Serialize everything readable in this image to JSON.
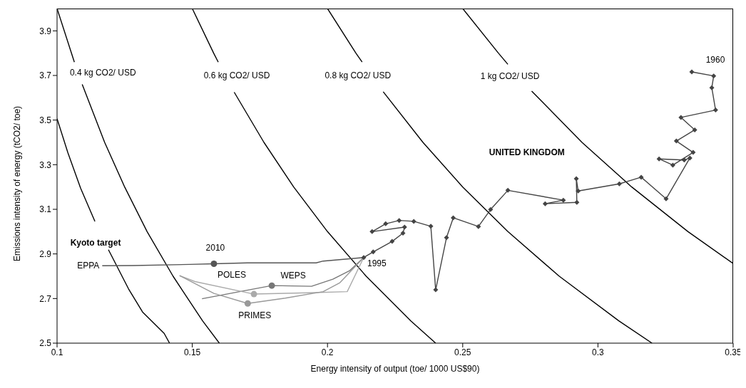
{
  "chart_data": {
    "type": "line",
    "xlabel": "Energy intensity of output (toe/ 1000 US$90)",
    "ylabel": "Emissions intensity of energy (tCO2/ toe)",
    "xlim": [
      0.1,
      0.35
    ],
    "xticks": [
      0.1,
      0.15,
      0.2,
      0.25,
      0.3,
      0.35
    ],
    "ylim": [
      2.5,
      4.0
    ],
    "yticks": [
      2.5,
      2.7,
      2.9,
      3.1,
      3.3,
      3.5,
      3.7,
      3.9
    ],
    "grid": false,
    "marker": "none",
    "series": [
      {
        "color": "#000000",
        "x": [
          0.1,
          0.1064,
          0.108,
          0.1093,
          0.1176,
          0.125,
          0.1333,
          0.1429,
          0.1538,
          0.16
        ],
        "values": [
          4.0,
          3.76,
          null,
          3.66,
          3.4,
          3.2,
          3.0,
          2.8,
          2.6,
          2.5
        ]
      },
      {
        "color": "#000000",
        "x": [
          0.15,
          0.1579,
          0.1596,
          0.162,
          0.1655,
          0.1765,
          0.1875,
          0.2,
          0.2143,
          0.2308,
          0.24
        ],
        "values": [
          4.0,
          3.8,
          3.76,
          null,
          3.625,
          3.4,
          3.2,
          3.0,
          2.8,
          2.6,
          2.5
        ]
      },
      {
        "color": "#000000",
        "x": [
          0.2,
          0.2105,
          0.2128,
          0.216,
          0.2206,
          0.2353,
          0.25,
          0.2667,
          0.2857,
          0.3077,
          0.32
        ],
        "values": [
          4.0,
          3.8,
          3.76,
          null,
          3.627,
          3.4,
          3.2,
          3.0,
          2.8,
          2.6,
          2.5
        ]
      },
      {
        "color": "#000000",
        "x": [
          0.25,
          0.2632,
          0.2667,
          0.27,
          0.2755,
          0.2941,
          0.3125,
          0.3333,
          0.35
        ],
        "values": [
          4.0,
          3.8,
          3.75,
          null,
          3.63,
          3.4,
          3.2,
          3.0,
          2.857
        ]
      },
      {
        "color": "#000000",
        "x": [
          0.1,
          0.104,
          0.1087,
          0.114,
          0.1165,
          0.119,
          0.1264,
          0.1316,
          0.1396,
          0.1416
        ],
        "values": [
          3.506,
          3.354,
          3.195,
          3.046,
          null,
          2.919,
          2.744,
          2.64,
          2.544,
          2.5
        ]
      },
      {
        "color": "#444444",
        "marker": "diamond",
        "x": [
          0.3347,
          0.3428,
          0.3421,
          0.3435,
          0.3307,
          0.3358,
          0.329,
          0.3352,
          0.3277,
          0.3226,
          0.3319,
          0.334,
          0.3252,
          0.316,
          0.3079,
          0.2927,
          0.292,
          0.2922,
          0.2805,
          0.2872,
          0.2667,
          0.2603,
          0.2558,
          0.2465,
          0.244,
          0.24,
          0.2382,
          0.2319,
          0.2265,
          0.2215,
          0.2165,
          0.2285,
          0.2279,
          0.2239,
          0.2169,
          0.2134
        ],
        "values": [
          3.716,
          3.698,
          3.645,
          3.545,
          3.512,
          3.456,
          3.406,
          3.355,
          3.298,
          3.326,
          3.321,
          3.33,
          3.147,
          3.244,
          3.214,
          3.182,
          3.237,
          3.131,
          3.125,
          3.141,
          3.185,
          3.099,
          3.023,
          3.062,
          2.973,
          2.739,
          3.024,
          3.046,
          3.05,
          3.035,
          3.0,
          3.02,
          2.993,
          2.956,
          2.909,
          2.884
        ]
      },
      {
        "color": "#555555",
        "x": [
          0.1167,
          0.1281,
          0.1492,
          0.158,
          0.1703,
          0.1958,
          0.1984,
          0.2134
        ],
        "values": [
          2.847,
          2.848,
          2.853,
          2.856,
          2.86,
          2.86,
          2.868,
          2.884
        ]
      },
      {
        "color": "#777777",
        "x": [
          0.1536,
          0.1794,
          0.1941,
          0.202,
          0.2081,
          0.2134
        ],
        "values": [
          2.699,
          2.758,
          2.755,
          2.787,
          2.824,
          2.884
        ]
      },
      {
        "color": "#aaaaaa",
        "x": [
          0.1453,
          0.151,
          0.1728,
          0.1932,
          0.2073,
          0.2134
        ],
        "values": [
          2.803,
          2.776,
          2.72,
          2.726,
          2.731,
          2.884
        ]
      },
      {
        "color": "#999999",
        "x": [
          0.1453,
          0.158,
          0.1705,
          0.1844,
          0.1984,
          0.2046,
          0.2134
        ],
        "values": [
          2.803,
          2.723,
          2.678,
          2.702,
          2.731,
          2.771,
          2.884
        ]
      },
      {
        "type": "scatter",
        "marker": "circle",
        "x": [
          0.158,
          0.1794,
          0.1728,
          0.1705
        ],
        "values": [
          2.856,
          2.758,
          2.72,
          2.678
        ],
        "colors": [
          "#555555",
          "#777777",
          "#aaaaaa",
          "#999999"
        ]
      }
    ],
    "annotations": [
      {
        "text": "0.4 kg CO2/ USD",
        "x": 0.1064,
        "y": 3.76
      },
      {
        "text": "0.6 kg CO2/ USD",
        "x": 0.1596,
        "y": 3.76
      },
      {
        "text": "0.8 kg CO2/ USD",
        "x": 0.2128,
        "y": 3.76
      },
      {
        "text": "1 kg CO2/ USD",
        "x": 0.2667,
        "y": 3.75
      },
      {
        "text": "1960",
        "x": 0.3347,
        "y": 3.716
      },
      "UNITED KINGDOM",
      {
        "text": "Kyoto target",
        "x": 0.119,
        "y": 2.919
      },
      {
        "text": "EPPA",
        "x": 0.1167,
        "y": 2.847
      },
      {
        "text": "2010",
        "x": 0.158,
        "y": 2.856
      },
      {
        "text": "POLES",
        "x": 0.158,
        "y": 2.856
      },
      {
        "text": "WEPS",
        "x": 0.1794,
        "y": 2.758
      },
      {
        "text": "PRIMES",
        "x": 0.1705,
        "y": 2.678
      },
      {
        "text": "1995",
        "x": 0.2134,
        "y": 2.884
      }
    ]
  }
}
